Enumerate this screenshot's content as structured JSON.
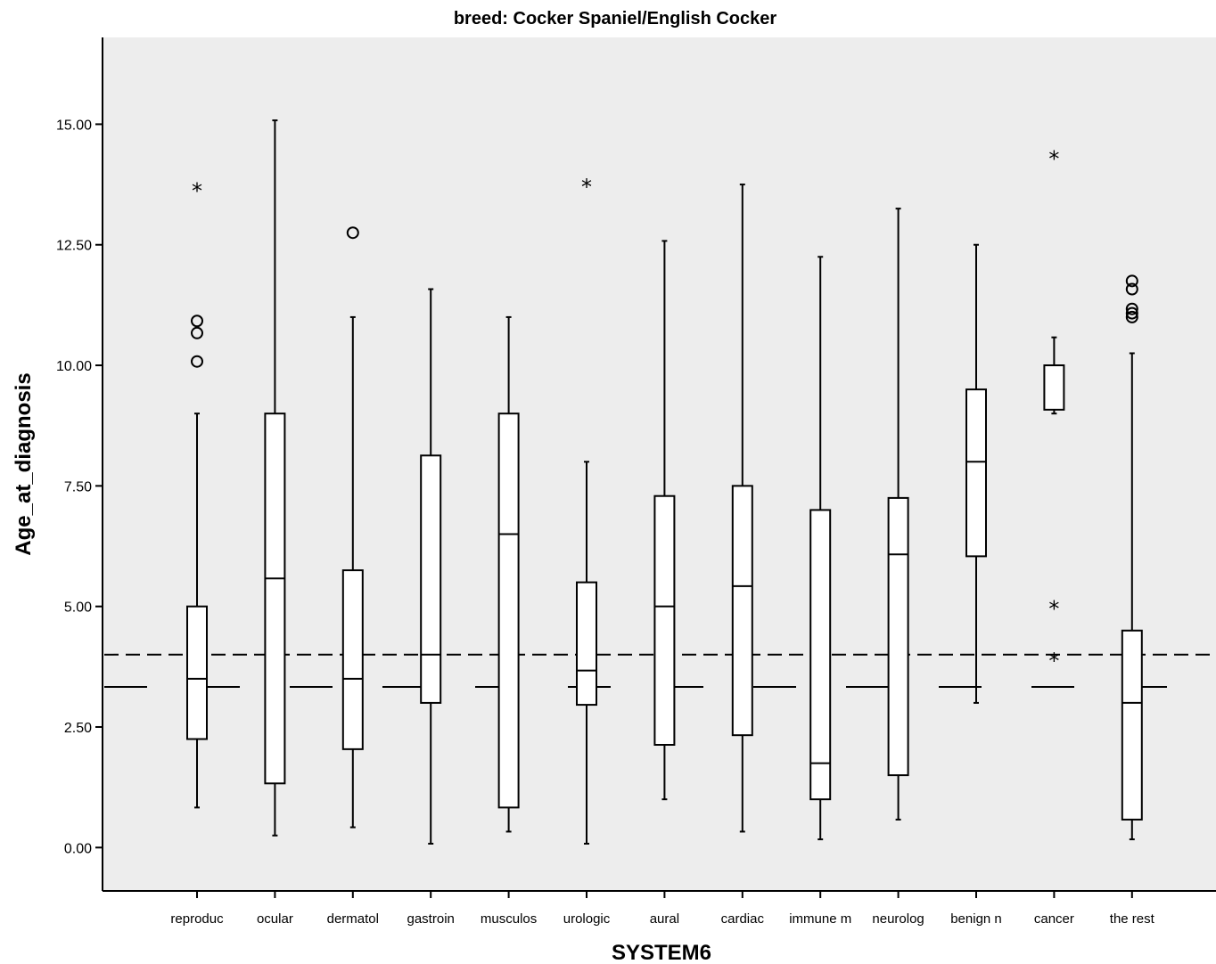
{
  "chart_data": {
    "type": "boxplot",
    "title": "breed: Cocker Spaniel/English Cocker",
    "xlabel": "SYSTEM6",
    "ylabel": "Age_at_diagnosis",
    "ylim": [
      -0.9,
      16.8
    ],
    "yticks": [
      "0.00",
      "2.50",
      "5.00",
      "7.50",
      "10.00",
      "12.50",
      "15.00"
    ],
    "grid": false,
    "background": "#ededed",
    "reference_lines": [
      {
        "y": 4.0,
        "style": "dashed"
      },
      {
        "y": 3.33,
        "style": "long-dash"
      }
    ],
    "categories": [
      "reproduc",
      "ocular",
      "dermatol",
      "gastroin",
      "musculos",
      "urologic",
      "aural",
      "cardiac",
      "immune m",
      "neurolog",
      "benign n",
      "cancer",
      "the rest"
    ],
    "boxes": [
      {
        "category": "reproduc",
        "whisker_low": 0.83,
        "q1": 2.25,
        "median": 3.5,
        "q3": 5.0,
        "whisker_high": 9.0,
        "outliers": [
          10.08,
          10.67,
          10.92
        ],
        "extremes": [
          13.67
        ]
      },
      {
        "category": "ocular",
        "whisker_low": 0.25,
        "q1": 1.33,
        "median": 5.58,
        "q3": 9.0,
        "whisker_high": 15.08,
        "outliers": [],
        "extremes": []
      },
      {
        "category": "dermatol",
        "whisker_low": 0.42,
        "q1": 2.04,
        "median": 3.5,
        "q3": 5.75,
        "whisker_high": 11.0,
        "outliers": [
          12.75
        ],
        "extremes": []
      },
      {
        "category": "gastroin",
        "whisker_low": 0.08,
        "q1": 3.0,
        "median": 4.0,
        "q3": 8.13,
        "whisker_high": 11.58,
        "outliers": [],
        "extremes": []
      },
      {
        "category": "musculos",
        "whisker_low": 0.33,
        "q1": 0.83,
        "median": 6.5,
        "q3": 9.0,
        "whisker_high": 11.0,
        "outliers": [],
        "extremes": []
      },
      {
        "category": "urologic",
        "whisker_low": 0.08,
        "q1": 2.96,
        "median": 3.67,
        "q3": 5.5,
        "whisker_high": 8.0,
        "outliers": [],
        "extremes": [
          13.75
        ]
      },
      {
        "category": "aural",
        "whisker_low": 1.0,
        "q1": 2.13,
        "median": 5.0,
        "q3": 7.29,
        "whisker_high": 12.58,
        "outliers": [],
        "extremes": []
      },
      {
        "category": "cardiac",
        "whisker_low": 0.33,
        "q1": 2.33,
        "median": 5.42,
        "q3": 7.5,
        "whisker_high": 13.75,
        "outliers": [],
        "extremes": []
      },
      {
        "category": "immune m",
        "whisker_low": 0.17,
        "q1": 1.0,
        "median": 1.75,
        "q3": 7.0,
        "whisker_high": 12.25,
        "outliers": [],
        "extremes": []
      },
      {
        "category": "neurolog",
        "whisker_low": 0.58,
        "q1": 1.5,
        "median": 6.08,
        "q3": 7.25,
        "whisker_high": 13.25,
        "outliers": [],
        "extremes": []
      },
      {
        "category": "benign n",
        "whisker_low": 3.0,
        "q1": 6.04,
        "median": 8.0,
        "q3": 9.5,
        "whisker_high": 12.5,
        "outliers": [],
        "extremes": []
      },
      {
        "category": "cancer",
        "whisker_low": 9.0,
        "q1": 9.08,
        "median": 10.0,
        "q3": 10.0,
        "whisker_high": 10.58,
        "outliers": [],
        "extremes": [
          3.92,
          5.0,
          14.33
        ]
      },
      {
        "category": "the rest",
        "whisker_low": 0.17,
        "q1": 0.58,
        "median": 3.0,
        "q3": 4.5,
        "whisker_high": 10.25,
        "outliers": [
          11.0,
          11.08,
          11.17,
          11.58,
          11.75
        ],
        "extremes": []
      }
    ]
  }
}
